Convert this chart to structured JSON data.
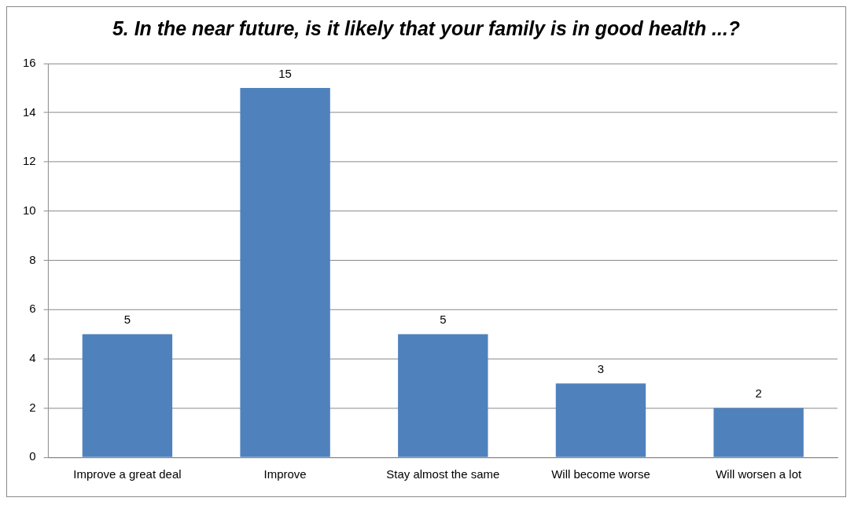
{
  "chart_data": {
    "type": "bar",
    "title": "5. In the near future, is it likely that your family is in good health ...?",
    "categories": [
      "Improve a great deal",
      "Improve",
      "Stay almost the same",
      "Will become worse",
      "Will worsen a lot"
    ],
    "values": [
      5,
      15,
      5,
      3,
      2
    ],
    "color": "#4f81bd",
    "ylim": [
      0,
      16
    ],
    "yticks": [
      0,
      2,
      4,
      6,
      8,
      10,
      12,
      14,
      16
    ],
    "grid": "y",
    "legend": false,
    "data_labels": true
  }
}
